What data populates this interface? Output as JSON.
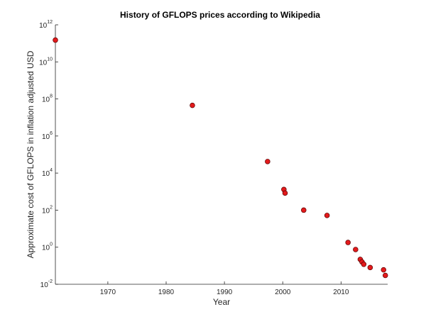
{
  "chart_data": {
    "type": "scatter",
    "title": "History of GFLOPS prices according to Wikipedia",
    "xlabel": "Year",
    "ylabel": "Approximate cost of GFLOPS in inflation adjusted USD",
    "xlim": [
      1961,
      2018
    ],
    "ylim": [
      0.01,
      1000000000000
    ],
    "yscale": "log",
    "grid": false,
    "x_ticks": [
      1970,
      1980,
      1990,
      2000,
      2010
    ],
    "x_tick_labels": [
      "1970",
      "1980",
      "1990",
      "2000",
      "2010"
    ],
    "y_ticks": [
      {
        "value": 0.01,
        "base": "10",
        "exp": "-2"
      },
      {
        "value": 1,
        "base": "10",
        "exp": "0"
      },
      {
        "value": 100,
        "base": "10",
        "exp": "2"
      },
      {
        "value": 10000,
        "base": "10",
        "exp": "4"
      },
      {
        "value": 1000000,
        "base": "10",
        "exp": "6"
      },
      {
        "value": 100000000,
        "base": "10",
        "exp": "8"
      },
      {
        "value": 10000000000,
        "base": "10",
        "exp": "10"
      },
      {
        "value": 1000000000000,
        "base": "10",
        "exp": "12"
      }
    ],
    "points": [
      {
        "x": 1961,
        "y": 150000000000
      },
      {
        "x": 1984.5,
        "y": 45000000
      },
      {
        "x": 1997.4,
        "y": 42000
      },
      {
        "x": 2000.2,
        "y": 1300
      },
      {
        "x": 2000.4,
        "y": 830
      },
      {
        "x": 2003.6,
        "y": 100
      },
      {
        "x": 2007.6,
        "y": 52
      },
      {
        "x": 2011.2,
        "y": 1.8
      },
      {
        "x": 2012.5,
        "y": 0.75
      },
      {
        "x": 2013.3,
        "y": 0.22
      },
      {
        "x": 2013.6,
        "y": 0.16
      },
      {
        "x": 2013.9,
        "y": 0.12
      },
      {
        "x": 2015.0,
        "y": 0.08
      },
      {
        "x": 2017.3,
        "y": 0.06
      },
      {
        "x": 2017.6,
        "y": 0.03
      }
    ]
  }
}
